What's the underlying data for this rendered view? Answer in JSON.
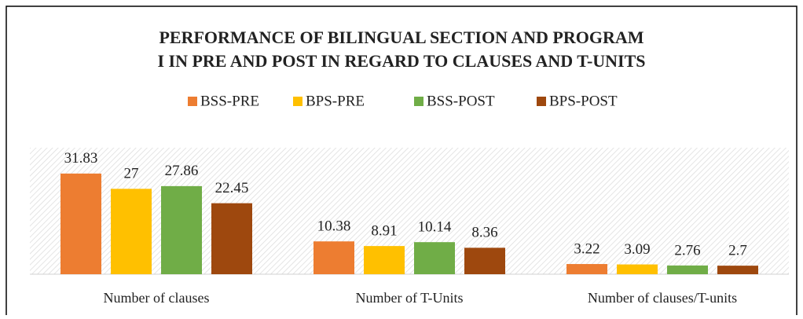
{
  "chart_data": {
    "type": "bar",
    "title": [
      "PERFORMANCE OF BILINGUAL SECTION AND PROGRAM",
      "I IN PRE AND POST IN REGARD TO CLAUSES AND T-UNITS"
    ],
    "categories": [
      "Number of clauses",
      "Number of T-Units",
      "Number of clauses/T-units"
    ],
    "series": [
      {
        "name": "BSS-PRE",
        "color": "#ED7D31",
        "values": [
          31.83,
          10.38,
          3.22
        ]
      },
      {
        "name": "BPS-PRE",
        "color": "#FFC000",
        "values": [
          27,
          8.91,
          3.09
        ]
      },
      {
        "name": "BSS-POST",
        "color": "#70AD47",
        "values": [
          27.86,
          10.14,
          2.76
        ]
      },
      {
        "name": "BPS-POST",
        "color": "#9E480E",
        "values": [
          22.45,
          8.36,
          2.7
        ]
      }
    ],
    "ylim": [
      0,
      40
    ],
    "legend": "top"
  }
}
